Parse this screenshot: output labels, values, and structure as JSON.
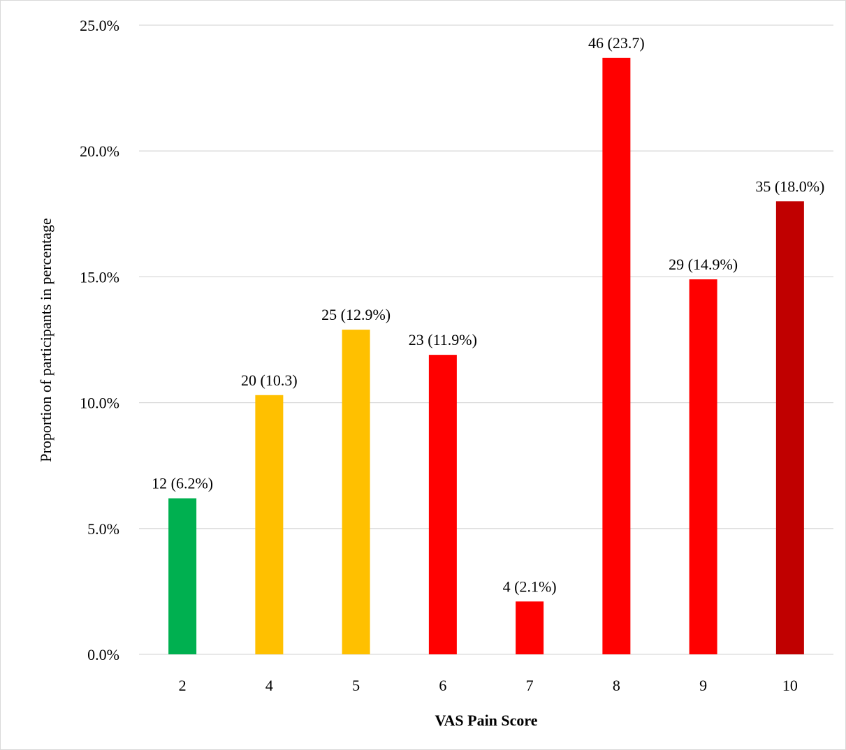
{
  "chart_data": {
    "type": "bar",
    "categories": [
      "2",
      "4",
      "5",
      "6",
      "7",
      "8",
      "9",
      "10"
    ],
    "values": [
      6.2,
      10.3,
      12.9,
      11.9,
      2.1,
      23.7,
      14.9,
      18.0
    ],
    "data_labels": [
      "12 (6.2%)",
      "20 (10.3)",
      "25 (12.9%)",
      "23 (11.9%)",
      "4 (2.1%)",
      "46 (23.7)",
      "29 (14.9%)",
      "35 (18.0%)"
    ],
    "bar_colors": [
      "#00b050",
      "#ffc000",
      "#ffc000",
      "#ff0000",
      "#ff0000",
      "#ff0000",
      "#ff0000",
      "#c00000"
    ],
    "xlabel": "VAS Pain Score",
    "ylabel": "Proportion of participants in percentage",
    "ylim": [
      0,
      25
    ],
    "y_ticks": [
      0,
      5,
      10,
      15,
      20,
      25
    ],
    "y_tick_labels": [
      "0.0%",
      "5.0%",
      "10.0%",
      "15.0%",
      "20.0%",
      "25.0%"
    ],
    "grid": true,
    "legend": "none"
  }
}
